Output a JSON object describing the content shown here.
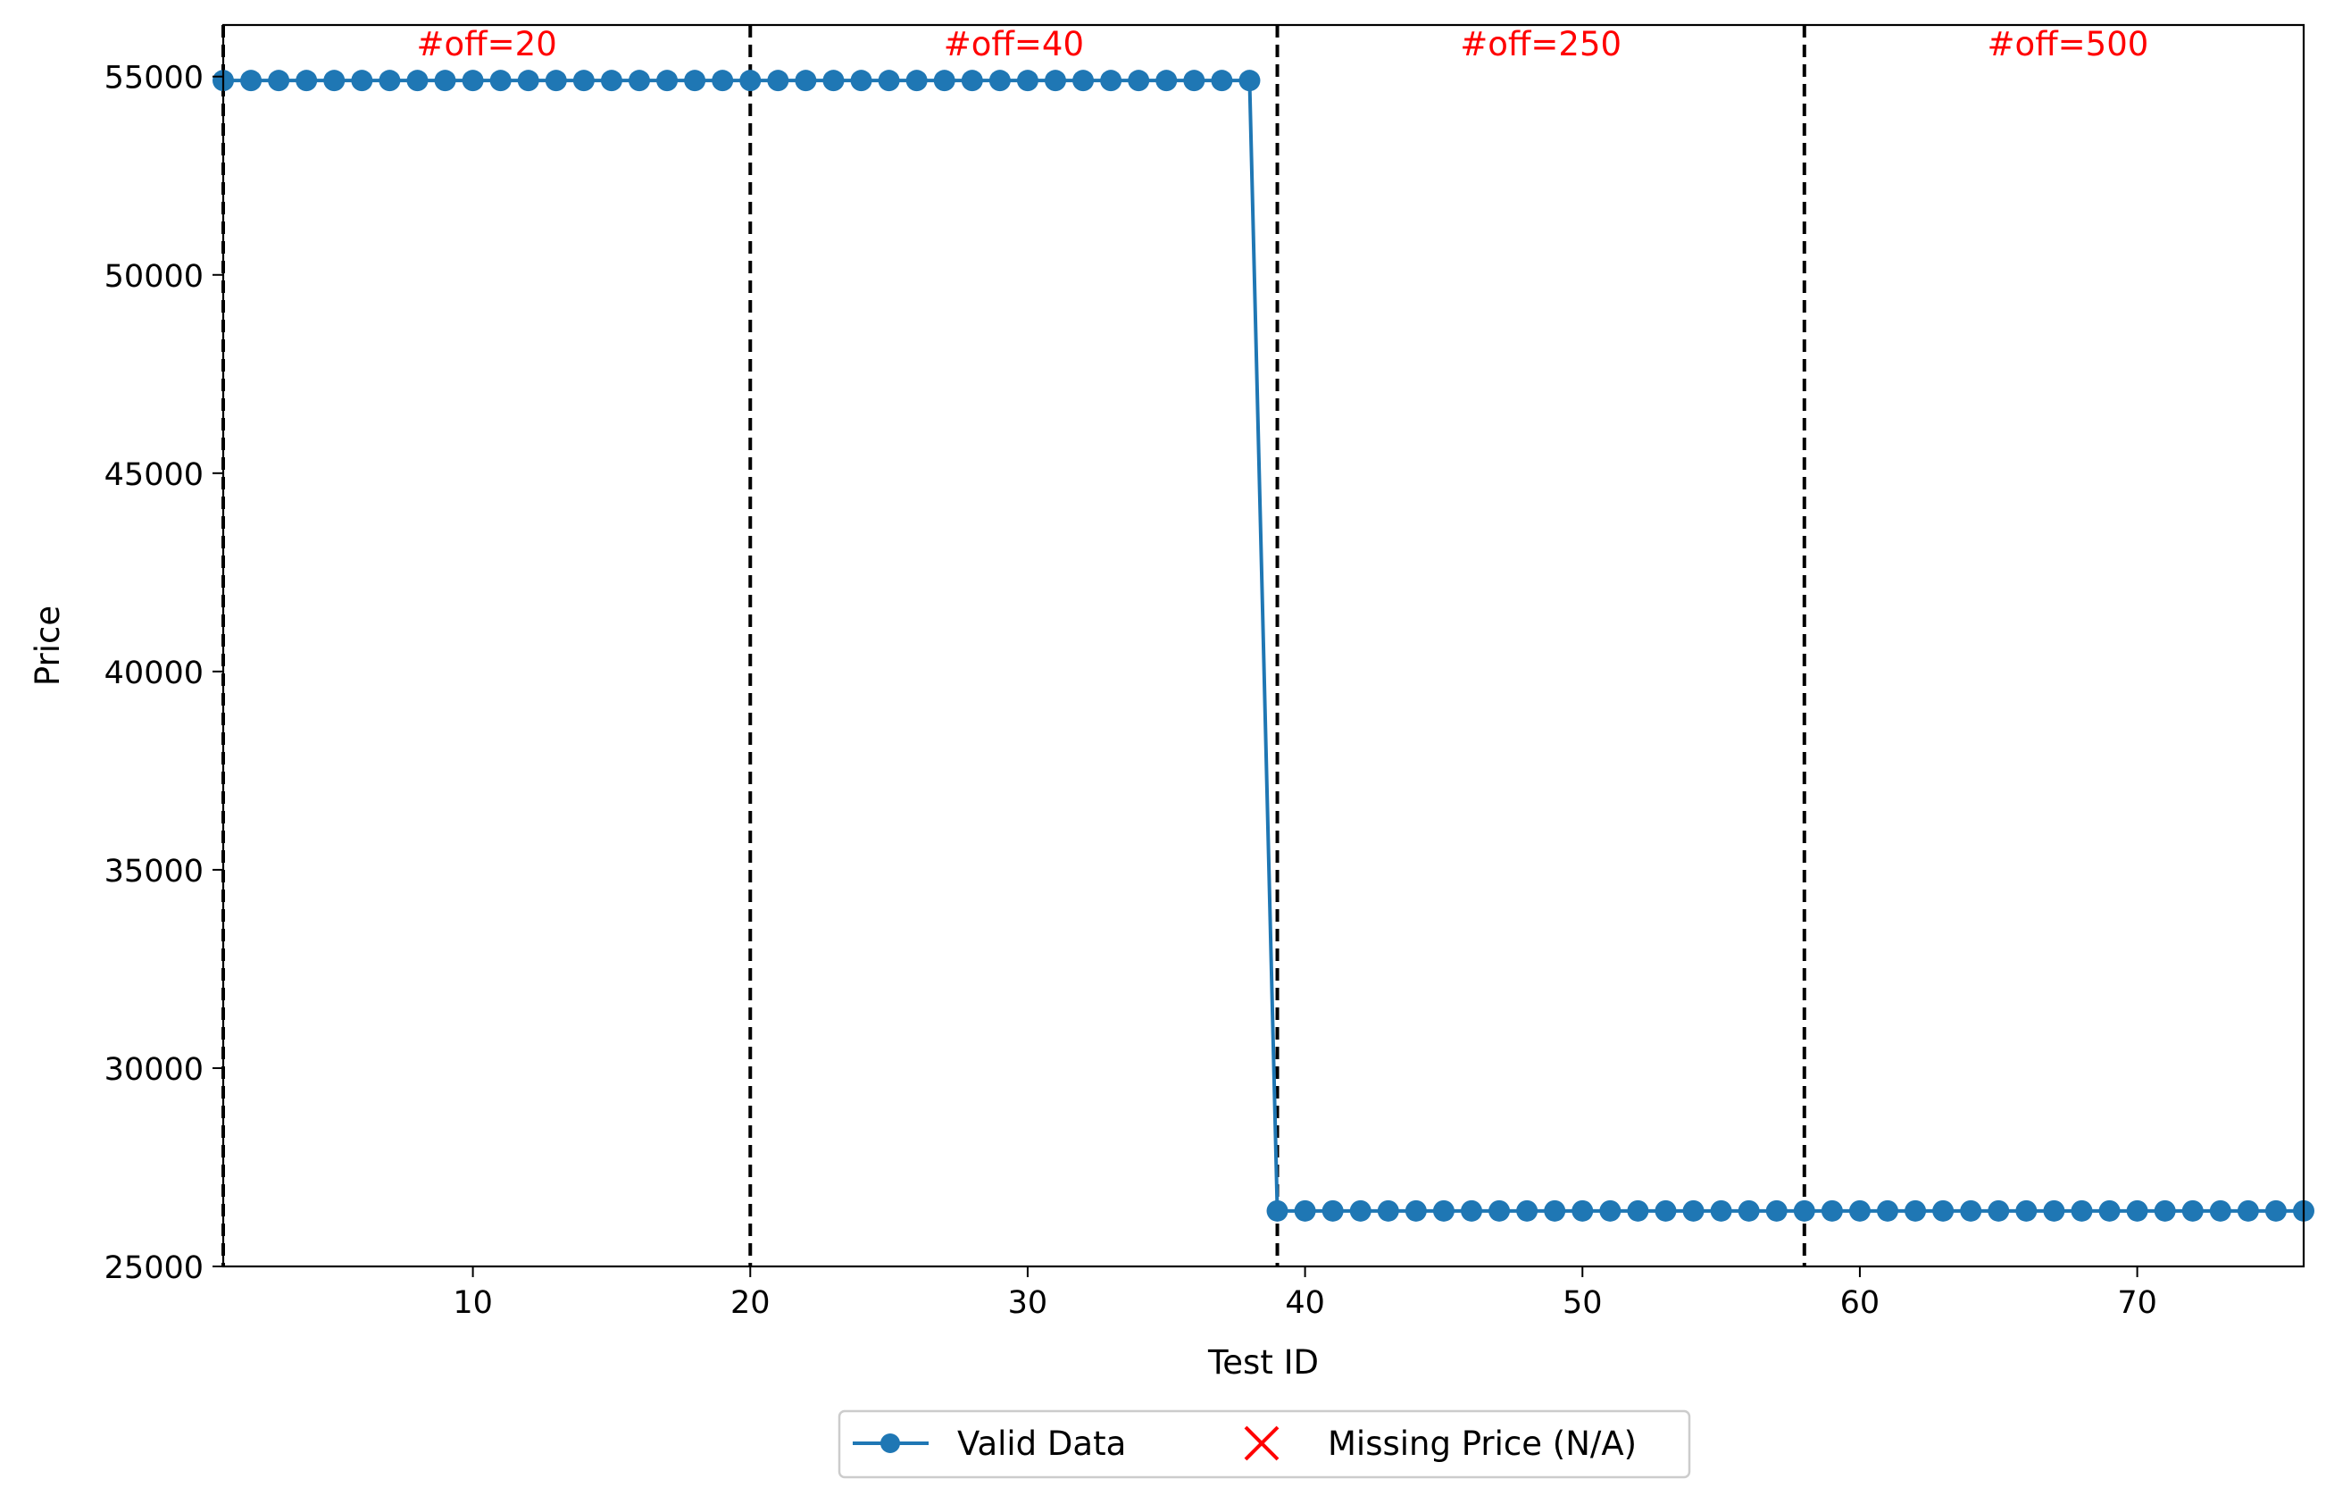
{
  "chart_data": {
    "type": "line",
    "title": "",
    "xlabel": "Test ID",
    "ylabel": "Price",
    "xlim": [
      1,
      76
    ],
    "ylim": [
      25000,
      56300
    ],
    "xticks": [
      10,
      20,
      30,
      40,
      50,
      60,
      70
    ],
    "yticks": [
      25000,
      30000,
      35000,
      40000,
      45000,
      50000,
      55000
    ],
    "grid": false,
    "series": [
      {
        "name": "Valid Data",
        "color": "#1f77b4",
        "marker": "circle",
        "x": [
          1,
          2,
          3,
          4,
          5,
          6,
          7,
          8,
          9,
          10,
          11,
          12,
          13,
          14,
          15,
          16,
          17,
          18,
          19,
          20,
          21,
          22,
          23,
          24,
          25,
          26,
          27,
          28,
          29,
          30,
          31,
          32,
          33,
          34,
          35,
          36,
          37,
          38,
          39,
          40,
          41,
          42,
          43,
          44,
          45,
          46,
          47,
          48,
          49,
          50,
          51,
          52,
          53,
          54,
          55,
          56,
          57,
          58,
          59,
          60,
          61,
          62,
          63,
          64,
          65,
          66,
          67,
          68,
          69,
          70,
          71,
          72,
          73,
          74,
          75,
          76
        ],
        "y": [
          54900,
          54900,
          54900,
          54900,
          54900,
          54900,
          54900,
          54900,
          54900,
          54900,
          54900,
          54900,
          54900,
          54900,
          54900,
          54900,
          54900,
          54900,
          54900,
          54900,
          54900,
          54900,
          54900,
          54900,
          54900,
          54900,
          54900,
          54900,
          54900,
          54900,
          54900,
          54900,
          54900,
          54900,
          54900,
          54900,
          54900,
          54900,
          26400,
          26400,
          26400,
          26400,
          26400,
          26400,
          26400,
          26400,
          26400,
          26400,
          26400,
          26400,
          26400,
          26400,
          26400,
          26400,
          26400,
          26400,
          26400,
          26400,
          26400,
          26400,
          26400,
          26400,
          26400,
          26400,
          26400,
          26400,
          26400,
          26400,
          26400,
          26400,
          26400,
          26400,
          26400,
          26400,
          26400,
          26400
        ]
      },
      {
        "name": "Missing Price (N/A)",
        "color": "#ff0000",
        "marker": "x",
        "x": [],
        "y": []
      }
    ],
    "vlines": {
      "style": "dashed",
      "color": "#000000",
      "x": [
        1,
        20,
        39,
        58
      ]
    },
    "annotations": [
      {
        "text": "#off=20",
        "x": 10.5,
        "color": "#ff0000"
      },
      {
        "text": "#off=40",
        "x": 29.5,
        "color": "#ff0000"
      },
      {
        "text": "#off=250",
        "x": 48.5,
        "color": "#ff0000"
      },
      {
        "text": "#off=500",
        "x": 67.5,
        "color": "#ff0000"
      }
    ],
    "legend": {
      "placement": "bottom-center, below axes",
      "entries": [
        "Valid Data",
        "Missing Price (N/A)"
      ]
    }
  }
}
